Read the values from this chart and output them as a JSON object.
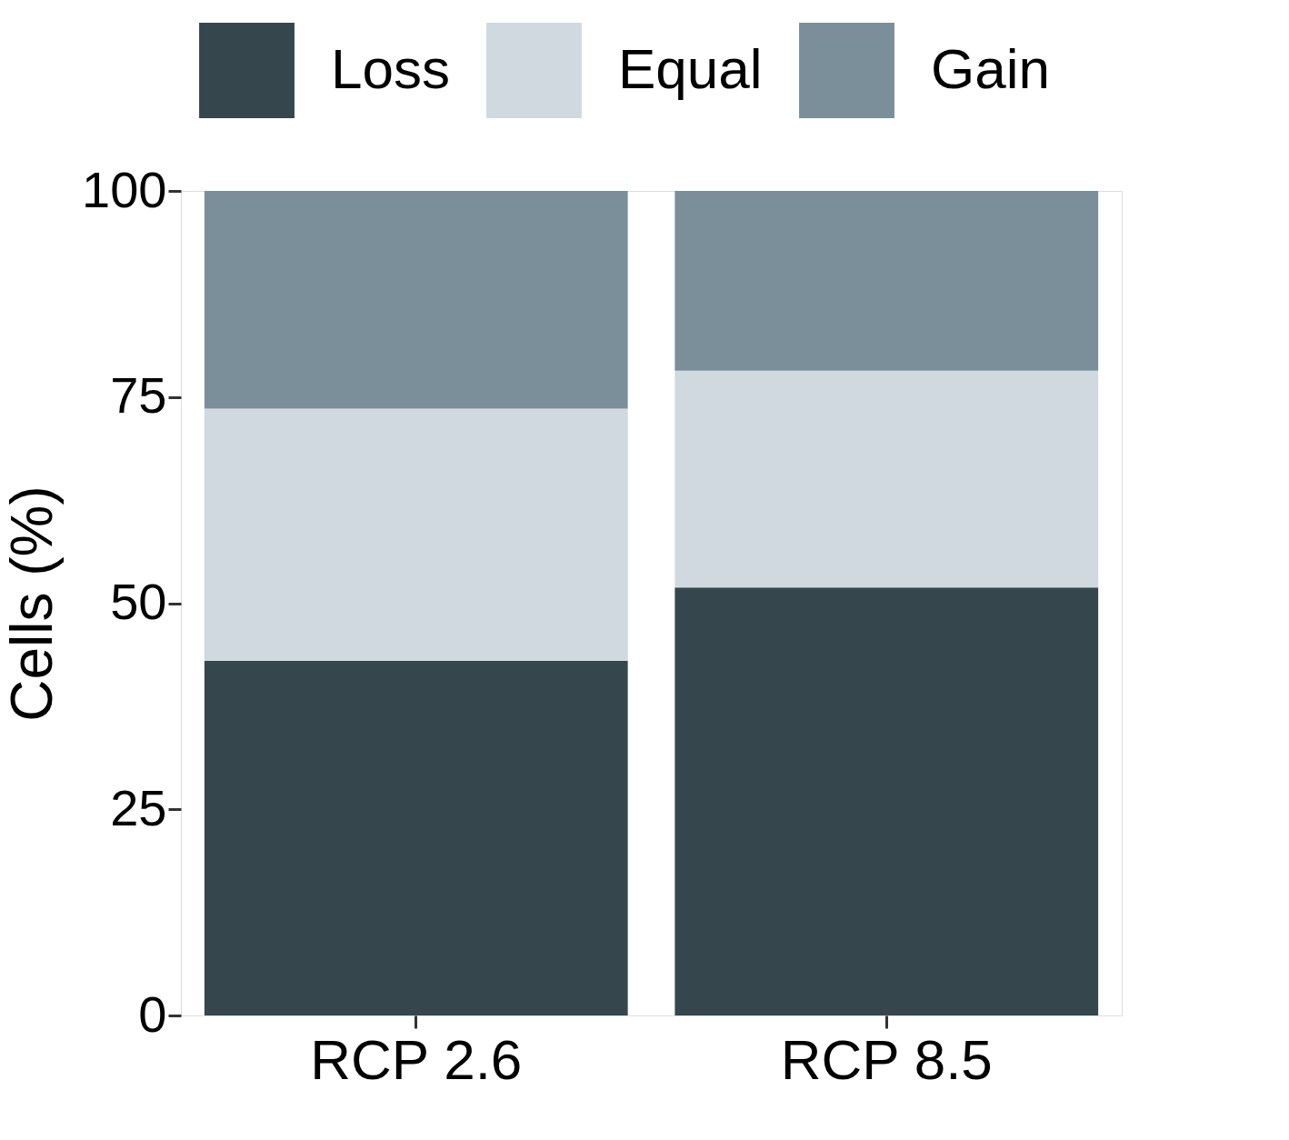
{
  "chart_data": {
    "type": "bar",
    "stacked": true,
    "ylabel": "Cells (%)",
    "categories": [
      "RCP 2.6",
      "RCP 8.5"
    ],
    "series": [
      {
        "name": "Loss",
        "color": "#35474c",
        "values": [
          43.0,
          51.9
        ]
      },
      {
        "name": "Equal",
        "color": "#cfd9df",
        "values": [
          30.6,
          26.3
        ]
      },
      {
        "name": "Gain",
        "color": "#7a8f9a",
        "values": [
          26.4,
          21.8
        ]
      }
    ],
    "ylim": [
      0,
      100
    ],
    "yticks": [
      0,
      25,
      50,
      75,
      100
    ],
    "grid": false,
    "legend": "top right"
  }
}
